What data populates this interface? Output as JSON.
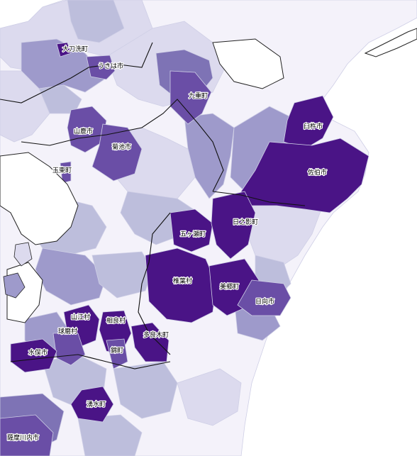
{
  "palette": {
    "sea": "#ffffff",
    "c0": "#f4f2fa",
    "c1": "#dcdaee",
    "c2": "#bdbedc",
    "c3": "#9e9acb",
    "c4": "#7e73b5",
    "c5": "#6a4ea6",
    "c6": "#4a1486"
  },
  "labels": [
    "大刀洗町",
    "うきは市",
    "九重町",
    "山鹿市",
    "菊池市",
    "玉東町",
    "臼杵市",
    "佐伯市",
    "五ヶ瀬町",
    "日之影町",
    "椎葉村",
    "美郷町",
    "日向市",
    "山江村",
    "相良村",
    "球磨村",
    "多良木町",
    "錦町",
    "水俣市",
    "湧水町",
    "薩摩川内市"
  ]
}
